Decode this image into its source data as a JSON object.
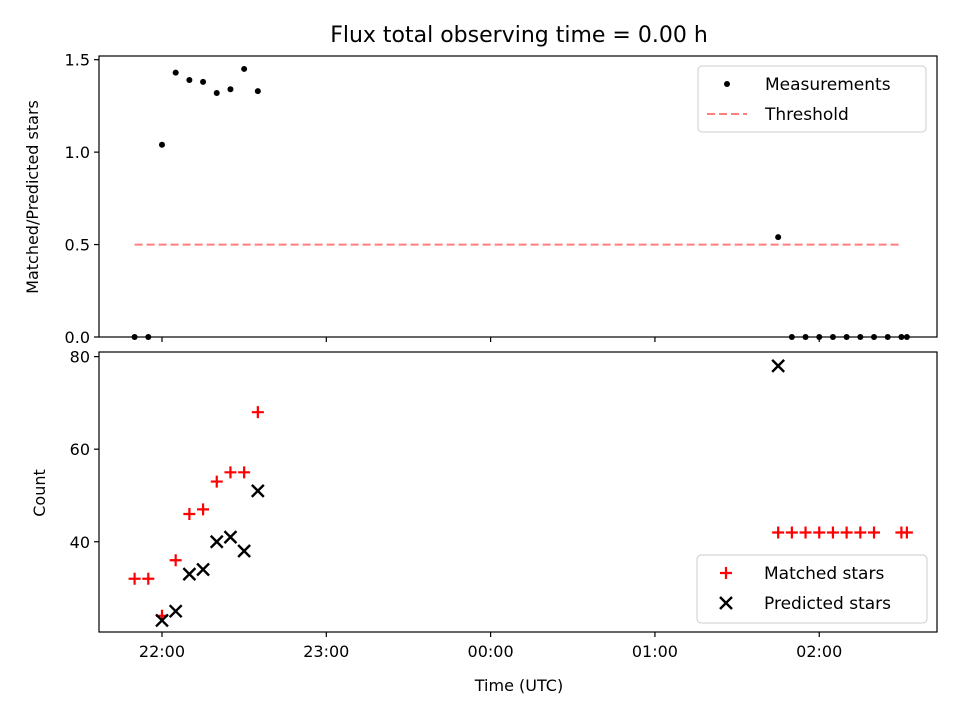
{
  "chart_data": [
    {
      "type": "scatter",
      "title": "Flux total observing time = 0.00 h",
      "xlabel": "",
      "ylabel": "Matched/Predicted stars",
      "xlim": [
        "21:37",
        "02:43"
      ],
      "ylim": [
        0,
        1.52
      ],
      "xtick_labels": [
        "22:00",
        "23:00",
        "00:00",
        "01:00",
        "02:00"
      ],
      "xticks": [
        "22:00",
        "23:00",
        "00:00",
        "01:00",
        "02:00"
      ],
      "yticks": [
        0.0,
        0.5,
        1.0,
        1.5
      ],
      "ytick_labels": [
        "0.0",
        "0.5",
        "1.0",
        "1.5"
      ],
      "show_xtick_labels": false,
      "legend": {
        "placement": "top-right",
        "entries": [
          "Measurements",
          "Threshold"
        ]
      },
      "series": [
        {
          "name": "Measurements",
          "marker": "dot",
          "color": "#000000",
          "points": [
            [
              "21:50",
              0.0
            ],
            [
              "21:55",
              0.0
            ],
            [
              "22:00",
              1.04
            ],
            [
              "22:05",
              1.43
            ],
            [
              "22:10",
              1.39
            ],
            [
              "22:15",
              1.38
            ],
            [
              "22:20",
              1.32
            ],
            [
              "22:25",
              1.34
            ],
            [
              "22:30",
              1.45
            ],
            [
              "22:35",
              1.33
            ],
            [
              "01:45",
              0.54
            ],
            [
              "01:50",
              0.0
            ],
            [
              "01:55",
              0.0
            ],
            [
              "02:00",
              0.0
            ],
            [
              "02:05",
              0.0
            ],
            [
              "02:10",
              0.0
            ],
            [
              "02:15",
              0.0
            ],
            [
              "02:20",
              0.0
            ],
            [
              "02:25",
              0.0
            ],
            [
              "02:30",
              0.0
            ],
            [
              "02:32",
              0.0
            ]
          ]
        },
        {
          "name": "Threshold",
          "marker": "dashed-line",
          "color": "#ff7f7f",
          "points": [
            [
              "21:50",
              0.5
            ],
            [
              "02:30",
              0.5
            ]
          ]
        }
      ]
    },
    {
      "type": "scatter",
      "title": "",
      "xlabel": "Time (UTC)",
      "ylabel": "Count",
      "xlim": [
        "21:37",
        "02:43"
      ],
      "ylim": [
        20.5,
        81
      ],
      "xticks": [
        "22:00",
        "23:00",
        "00:00",
        "01:00",
        "02:00"
      ],
      "xtick_labels": [
        "22:00",
        "23:00",
        "00:00",
        "01:00",
        "02:00"
      ],
      "yticks": [
        40,
        60,
        80
      ],
      "ytick_labels": [
        "40",
        "60",
        "80"
      ],
      "show_xtick_labels": true,
      "legend": {
        "placement": "bottom-right",
        "entries": [
          "Matched stars",
          "Predicted stars"
        ]
      },
      "series": [
        {
          "name": "Matched stars",
          "marker": "plus",
          "color": "#ff0000",
          "points": [
            [
              "21:50",
              32
            ],
            [
              "21:55",
              32
            ],
            [
              "22:00",
              24
            ],
            [
              "22:05",
              36
            ],
            [
              "22:10",
              46
            ],
            [
              "22:15",
              47
            ],
            [
              "22:20",
              53
            ],
            [
              "22:25",
              55
            ],
            [
              "22:30",
              55
            ],
            [
              "22:35",
              68
            ],
            [
              "01:45",
              42
            ],
            [
              "01:50",
              42
            ],
            [
              "01:55",
              42
            ],
            [
              "02:00",
              42
            ],
            [
              "02:05",
              42
            ],
            [
              "02:10",
              42
            ],
            [
              "02:15",
              42
            ],
            [
              "02:20",
              42
            ],
            [
              "02:30",
              42
            ],
            [
              "02:32",
              42
            ]
          ]
        },
        {
          "name": "Predicted stars",
          "marker": "x",
          "color": "#000000",
          "points": [
            [
              "22:00",
              23
            ],
            [
              "22:05",
              25
            ],
            [
              "22:10",
              33
            ],
            [
              "22:15",
              34
            ],
            [
              "22:20",
              40
            ],
            [
              "22:25",
              41
            ],
            [
              "22:30",
              38
            ],
            [
              "22:35",
              51
            ],
            [
              "01:45",
              78
            ]
          ]
        }
      ]
    }
  ]
}
